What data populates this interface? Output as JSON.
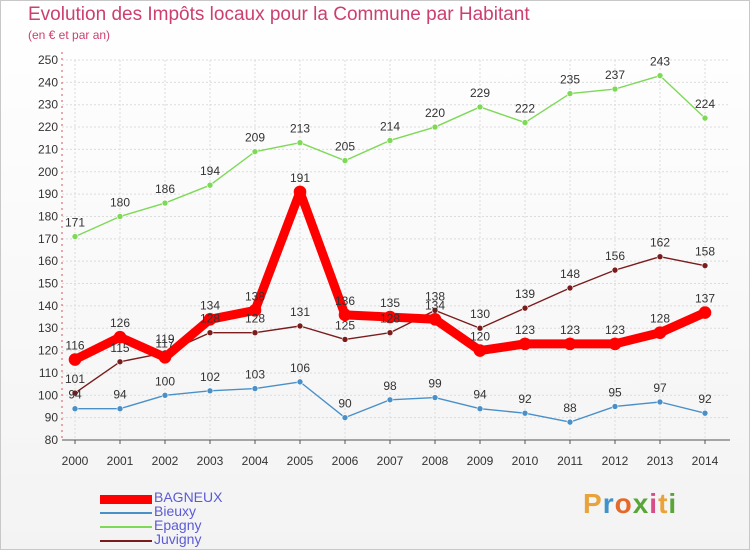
{
  "title": "Evolution des Impôts locaux pour la Commune par Habitant",
  "subtitle": "(en € et par an)",
  "logo": {
    "chars": [
      "P",
      "r",
      "o",
      "x",
      "i",
      "t",
      "i"
    ],
    "colors": [
      "#e8a33a",
      "#3f93c9",
      "#e36a2b",
      "#5aa53a",
      "#d94c8a",
      "#e8a33a",
      "#5aa53a"
    ]
  },
  "chart_data": {
    "type": "line",
    "title": "Evolution des Impôts locaux pour la Commune par Habitant",
    "subtitle": "(en € et par an)",
    "x": [
      "2000",
      "2001",
      "2002",
      "2003",
      "2004",
      "2005",
      "2006",
      "2007",
      "2008",
      "2009",
      "2010",
      "2011",
      "2012",
      "2013",
      "2014"
    ],
    "ylim": [
      80,
      250
    ],
    "yticks": [
      80,
      90,
      100,
      110,
      120,
      130,
      140,
      150,
      160,
      170,
      180,
      190,
      200,
      210,
      220,
      230,
      240,
      250
    ],
    "grid": true,
    "legend_position": "bottom-left",
    "series": [
      {
        "name": "BAGNEUX",
        "color": "#ff0000",
        "values": [
          116,
          126,
          117,
          134,
          138,
          191,
          136,
          135,
          134,
          120,
          123,
          123,
          123,
          128,
          137
        ]
      },
      {
        "name": "Bieuxy",
        "color": "#4a90c8",
        "values": [
          94,
          94,
          100,
          102,
          103,
          106,
          90,
          98,
          99,
          94,
          92,
          88,
          95,
          97,
          92
        ]
      },
      {
        "name": "Epagny",
        "color": "#7ed957",
        "values": [
          171,
          180,
          186,
          194,
          209,
          213,
          205,
          214,
          220,
          229,
          222,
          235,
          237,
          243,
          224
        ]
      },
      {
        "name": "Juvigny",
        "color": "#7a1c1c",
        "values": [
          101,
          115,
          119,
          128,
          128,
          131,
          125,
          128,
          138,
          130,
          139,
          148,
          156,
          162,
          158
        ]
      }
    ]
  }
}
